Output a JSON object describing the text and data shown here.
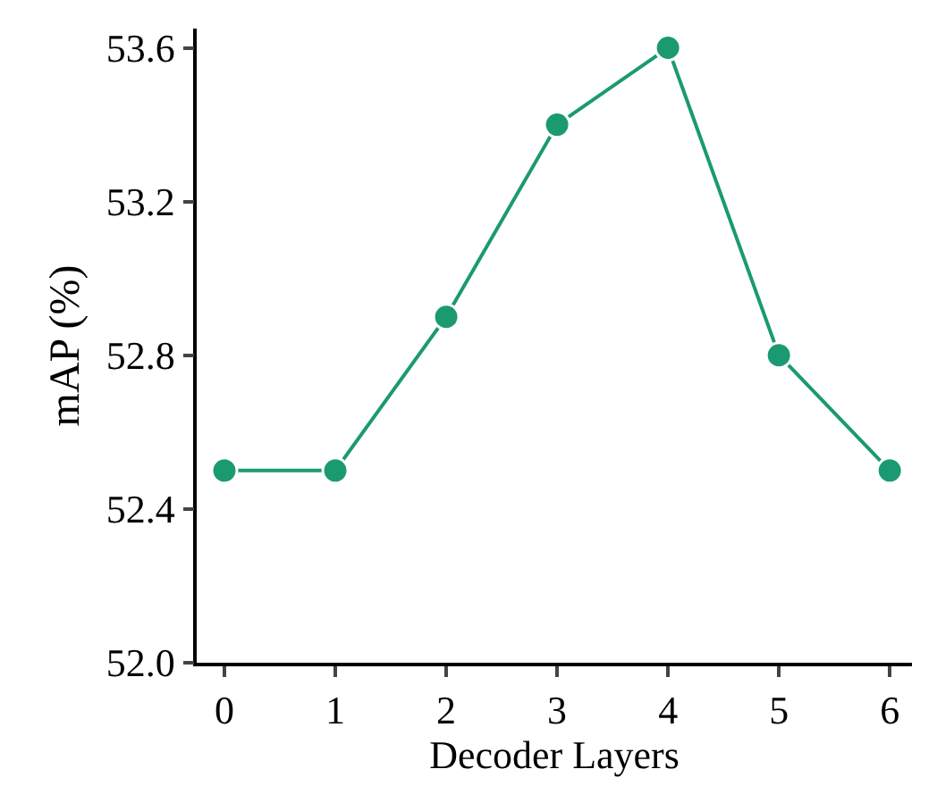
{
  "chart_data": {
    "type": "line",
    "xlabel": "Decoder Layers",
    "ylabel": "mAP (%)",
    "x": [
      0,
      1,
      2,
      3,
      4,
      5,
      6
    ],
    "series": [
      {
        "color": "#1b9a72",
        "values": [
          52.5,
          52.5,
          52.9,
          53.4,
          53.6,
          52.8,
          52.5
        ]
      }
    ],
    "xlim": [
      -0.25,
      6.2
    ],
    "xticks": [
      0,
      1,
      2,
      3,
      4,
      5,
      6
    ],
    "ylim": [
      52.0,
      53.65
    ],
    "yticks": [
      {
        "value": 52.0,
        "label": "52.0"
      },
      {
        "value": 52.4,
        "label": "52.4"
      },
      {
        "value": 52.8,
        "label": "52.8"
      },
      {
        "value": 53.2,
        "label": "53.2"
      },
      {
        "value": 53.6,
        "label": "53.6"
      }
    ],
    "marker": "circle",
    "line_style": "solid"
  }
}
